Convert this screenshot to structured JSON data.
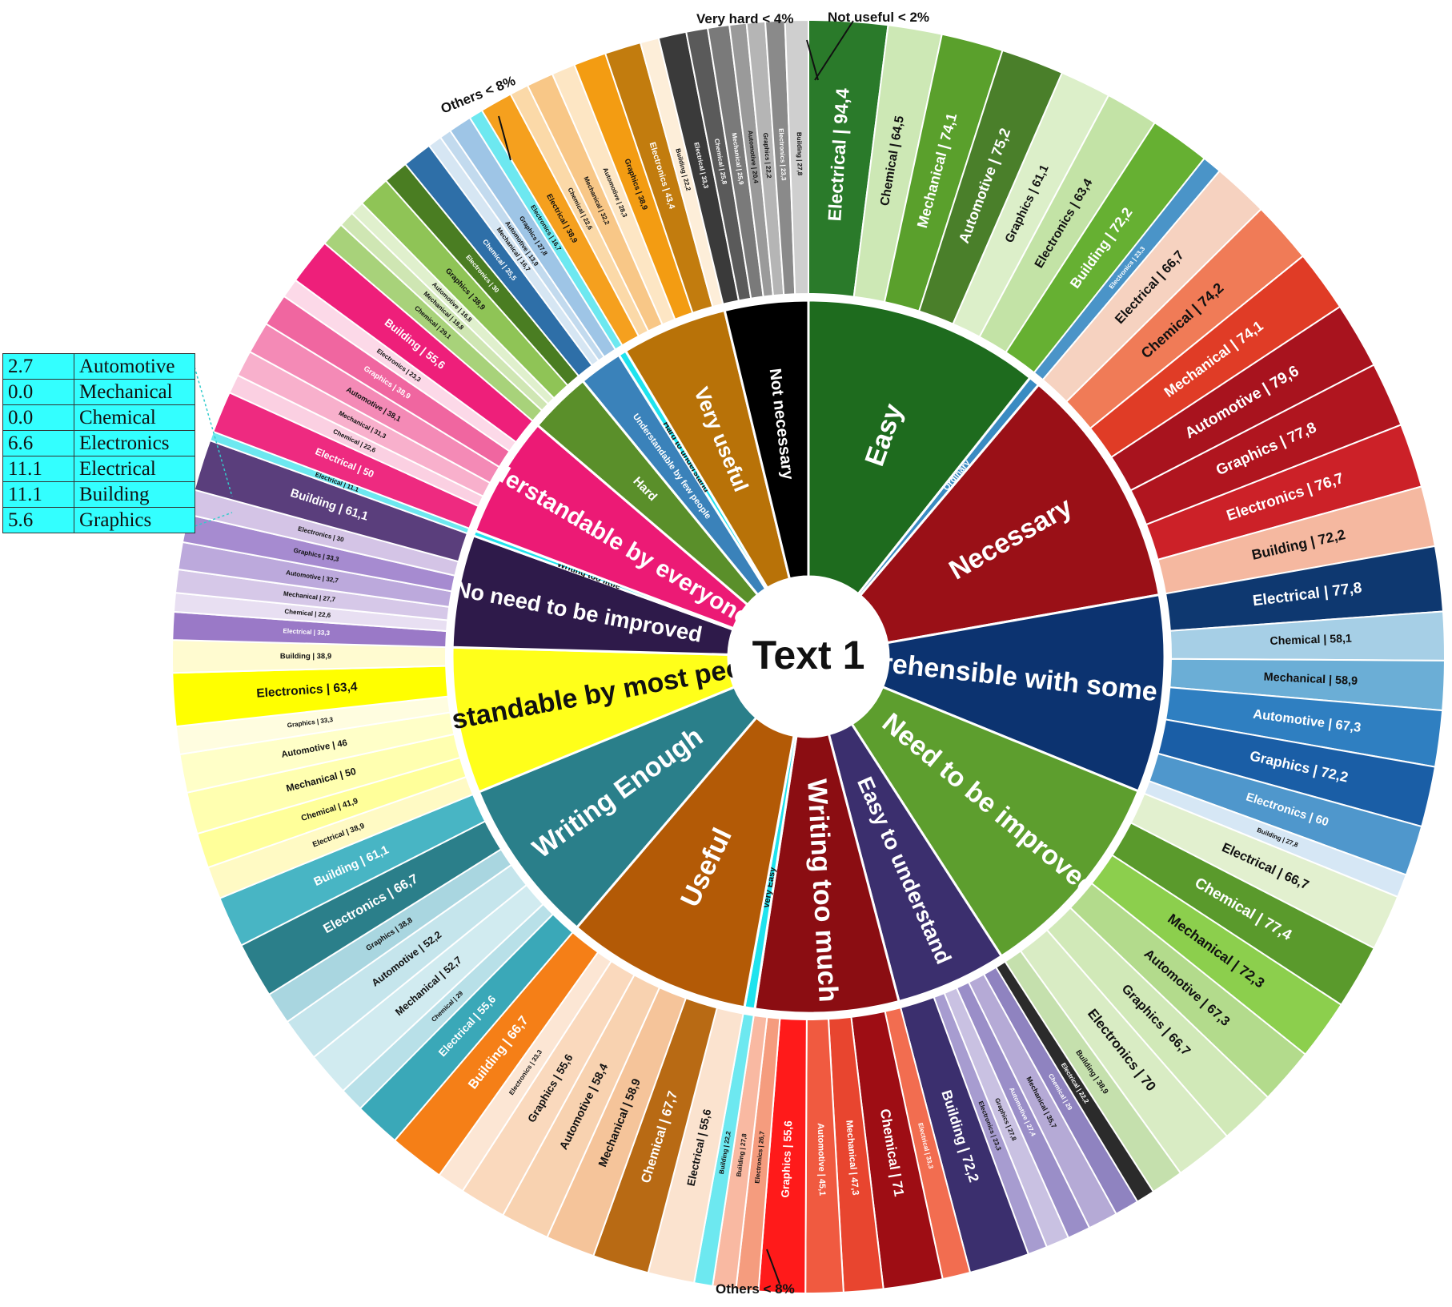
{
  "center_label": "Text 1",
  "callouts": {
    "very_hard": "Very hard < 4%",
    "not_useful": "Not useful < 2%",
    "others_top": "Others < 8%",
    "others_bottom": "Others < 8%"
  },
  "legend_table": [
    {
      "value": "2.7",
      "label": "Automotive"
    },
    {
      "value": "0.0",
      "label": "Mechanical"
    },
    {
      "value": "0.0",
      "label": "Chemical"
    },
    {
      "value": "6.6",
      "label": "Electronics"
    },
    {
      "value": "11.1",
      "label": "Electrical"
    },
    {
      "value": "11.1",
      "label": "Building"
    },
    {
      "value": "5.6",
      "label": "Graphics"
    }
  ],
  "chart_data": {
    "type": "sunburst",
    "title": "Text 1",
    "units": "percent of respondents per specialty",
    "categories": [
      {
        "label": "Easy",
        "color": "#1e6b1e",
        "items": [
          {
            "specialty": "Electrical",
            "value": "94,4",
            "color": "#2a7a2a"
          },
          {
            "specialty": "Chemical",
            "value": "64,5",
            "color": "#cde8b5"
          },
          {
            "specialty": "Mechanical",
            "value": "74,1",
            "color": "#5aa02c"
          },
          {
            "specialty": "Automotive",
            "value": "75,2",
            "color": "#4a7f2a"
          },
          {
            "specialty": "Graphics",
            "value": "61,1",
            "color": "#dcefc9"
          },
          {
            "specialty": "Electronics",
            "value": "63,4",
            "color": "#c3e3a6"
          },
          {
            "specialty": "Building",
            "value": "72,2",
            "color": "#66b032"
          }
        ]
      },
      {
        "label": "Ordinary",
        "color": "#3a8bc2",
        "items": [
          {
            "specialty": "Electronics",
            "value": "23,3",
            "color": "#4a94c8"
          }
        ]
      },
      {
        "label": "Necessary",
        "color": "#9a1017",
        "items": [
          {
            "specialty": "Electrical",
            "value": "66,7",
            "color": "#f6d2c0"
          },
          {
            "specialty": "Chemical",
            "value": "74,2",
            "color": "#f07b57"
          },
          {
            "specialty": "Mechanical",
            "value": "74,1",
            "color": "#e03c26"
          },
          {
            "specialty": "Automotive",
            "value": "79,6",
            "color": "#a8131e"
          },
          {
            "specialty": "Graphics",
            "value": "77,8",
            "color": "#b0151f"
          },
          {
            "specialty": "Electronics",
            "value": "76,7",
            "color": "#cc2128"
          },
          {
            "specialty": "Building",
            "value": "72,2",
            "color": "#f5b8a0"
          }
        ]
      },
      {
        "label": "Comprehensible with some difficulty",
        "color": "#0c3370",
        "items": [
          {
            "specialty": "Electrical",
            "value": "77,8",
            "color": "#0e3870"
          },
          {
            "specialty": "Chemical",
            "value": "58,1",
            "color": "#a6cfe6"
          },
          {
            "specialty": "Mechanical",
            "value": "58,9",
            "color": "#6baed6"
          },
          {
            "specialty": "Automotive",
            "value": "67,3",
            "color": "#2f7fc1"
          },
          {
            "specialty": "Graphics",
            "value": "72,2",
            "color": "#1a5ea6"
          },
          {
            "specialty": "Electronics",
            "value": "60",
            "color": "#4f97cc"
          },
          {
            "specialty": "Building",
            "value": "27,8",
            "color": "#d6e7f5"
          }
        ]
      },
      {
        "label": "Need to be improved",
        "color": "#5d9e2e",
        "items": [
          {
            "specialty": "Electrical",
            "value": "66,7",
            "color": "#e2f0cf"
          },
          {
            "specialty": "Chemical",
            "value": "77,4",
            "color": "#5a9a2c"
          },
          {
            "specialty": "Mechanical",
            "value": "72,3",
            "color": "#8ccf4d"
          },
          {
            "specialty": "Automotive",
            "value": "67,3",
            "color": "#b3db8c"
          },
          {
            "specialty": "Graphics",
            "value": "66,7",
            "color": "#d1e9b8"
          },
          {
            "specialty": "Electronics",
            "value": "70",
            "color": "#d9ecc4"
          },
          {
            "specialty": "Building",
            "value": "38,9",
            "color": "#c5e0ad"
          }
        ]
      },
      {
        "label": "Easy to understand",
        "color": "#3b2f6e",
        "items": [
          {
            "specialty": "Electrical",
            "value": "22,2",
            "color": "#2b2b2b"
          },
          {
            "specialty": "Chemical",
            "value": "29",
            "color": "#8f83c0"
          },
          {
            "specialty": "Mechanical",
            "value": "35,7",
            "color": "#b5aad6"
          },
          {
            "specialty": "Automotive",
            "value": "27,4",
            "color": "#9a8ec8"
          },
          {
            "specialty": "Graphics",
            "value": "27,8",
            "color": "#c9c1e2"
          },
          {
            "specialty": "Electronics",
            "value": "23,3",
            "color": "#a79cd0"
          },
          {
            "specialty": "Building",
            "value": "72,2",
            "color": "#3b2f6e"
          }
        ]
      },
      {
        "label": "Writing too much",
        "color": "#8b0d12",
        "items": [
          {
            "specialty": "Electrical",
            "value": "33,3",
            "color": "#f26d50"
          },
          {
            "specialty": "Chemical",
            "value": "71",
            "color": "#9e0d14"
          },
          {
            "specialty": "Mechanical",
            "value": "47,3",
            "color": "#e8452f"
          },
          {
            "specialty": "Automotive",
            "value": "45,1",
            "color": "#f05a40"
          },
          {
            "specialty": "Graphics",
            "value": "55,6",
            "color": "#ff1a1a"
          },
          {
            "specialty": "Electronics",
            "value": "26,7",
            "color": "#f59c7e"
          },
          {
            "specialty": "Building",
            "value": "27,8",
            "color": "#f9b9a2"
          }
        ]
      },
      {
        "label": "Very Easy",
        "color": "#1fe3ee",
        "items": [
          {
            "specialty": "Building",
            "value": "22,2",
            "color": "#6de8f0"
          }
        ]
      },
      {
        "label": "Useful",
        "color": "#b35a06",
        "items": [
          {
            "specialty": "Electrical",
            "value": "55,6",
            "color": "#fbe3cf"
          },
          {
            "specialty": "Chemical",
            "value": "67,7",
            "color": "#b86a14"
          },
          {
            "specialty": "Mechanical",
            "value": "58,9",
            "color": "#f5c49a"
          },
          {
            "specialty": "Automotive",
            "value": "58,4",
            "color": "#f8d2b0"
          },
          {
            "specialty": "Graphics",
            "value": "55,6",
            "color": "#fad9bd"
          },
          {
            "specialty": "Electronics",
            "value": "33,3",
            "color": "#fce6d4"
          },
          {
            "specialty": "Building",
            "value": "66,7",
            "color": "#f57f17"
          }
        ]
      },
      {
        "label": "Writing Enough",
        "color": "#2a7f8a",
        "items": [
          {
            "specialty": "Electrical",
            "value": "55,6",
            "color": "#3aa8b8"
          },
          {
            "specialty": "Chemical",
            "value": "29",
            "color": "#b8e0e8"
          },
          {
            "specialty": "Mechanical",
            "value": "52,7",
            "color": "#d1ebf0"
          },
          {
            "specialty": "Automotive",
            "value": "52,2",
            "color": "#c5e5ec"
          },
          {
            "specialty": "Graphics",
            "value": "38,8",
            "color": "#a9d6e0"
          },
          {
            "specialty": "Electronics",
            "value": "66,7",
            "color": "#2b7f8a"
          },
          {
            "specialty": "Building",
            "value": "61,1",
            "color": "#48b5c4"
          }
        ]
      },
      {
        "label": "Understandable by most people",
        "color": "#ffff1a",
        "items": [
          {
            "specialty": "Electrical",
            "value": "38,9",
            "color": "#fffac4"
          },
          {
            "specialty": "Chemical",
            "value": "41,9",
            "color": "#ffff9a"
          },
          {
            "specialty": "Mechanical",
            "value": "50",
            "color": "#ffffb0"
          },
          {
            "specialty": "Automotive",
            "value": "46",
            "color": "#ffffc8"
          },
          {
            "specialty": "Graphics",
            "value": "33,3",
            "color": "#fffde0"
          },
          {
            "specialty": "Electronics",
            "value": "63,4",
            "color": "#ffff00"
          },
          {
            "specialty": "Building",
            "value": "38,9",
            "color": "#fffbd0"
          }
        ]
      },
      {
        "label": "No need to be improved",
        "color": "#2e1a4a",
        "items": [
          {
            "specialty": "Electrical",
            "value": "33,3",
            "color": "#9a79c7"
          },
          {
            "specialty": "Chemical",
            "value": "22,6",
            "color": "#e8dff2"
          },
          {
            "specialty": "Mechanical",
            "value": "27,7",
            "color": "#d6c8e8"
          },
          {
            "specialty": "Automotive",
            "value": "32,7",
            "color": "#bca9dc"
          },
          {
            "specialty": "Graphics",
            "value": "33,3",
            "color": "#a68bd0"
          },
          {
            "specialty": "Electronics",
            "value": "30",
            "color": "#d4c4e6"
          },
          {
            "specialty": "Building",
            "value": "61,1",
            "color": "#5a3e7c"
          }
        ]
      },
      {
        "label": "Writing too little",
        "color": "#1fe3ee",
        "items": [
          {
            "specialty": "Electrical",
            "value": "11.1",
            "color": "#6de8f0"
          }
        ]
      },
      {
        "label": "Understandable by everyone",
        "color": "#ec1a75",
        "items": [
          {
            "specialty": "Electrical",
            "value": "50",
            "color": "#ee2a80"
          },
          {
            "specialty": "Chemical",
            "value": "22,6",
            "color": "#fbd0e2"
          },
          {
            "specialty": "Mechanical",
            "value": "31,3",
            "color": "#f8b0cc"
          },
          {
            "specialty": "Automotive",
            "value": "38,1",
            "color": "#f48ab6"
          },
          {
            "specialty": "Graphics",
            "value": "38,9",
            "color": "#f066a0"
          },
          {
            "specialty": "Electronics",
            "value": "23,3",
            "color": "#fcd9e8"
          },
          {
            "specialty": "Building",
            "value": "55,6",
            "color": "#ee1f7a"
          }
        ]
      },
      {
        "label": "Hard",
        "color": "#5a8f2a",
        "items": [
          {
            "specialty": "Chemical",
            "value": "29,1",
            "color": "#a8d27a"
          },
          {
            "specialty": "Mechanical",
            "value": "18,8",
            "color": "#cfe6b3"
          },
          {
            "specialty": "Automotive",
            "value": "16,8",
            "color": "#e0f0cd"
          },
          {
            "specialty": "Graphics",
            "value": "38,9",
            "color": "#8fc456"
          },
          {
            "specialty": "Electronics",
            "value": "30",
            "color": "#4a7d22"
          }
        ]
      },
      {
        "label": "Understandable by few people",
        "color": "#3a82ba",
        "items": [
          {
            "specialty": "Chemical",
            "value": "35,5",
            "color": "#2e6fa8"
          },
          {
            "specialty": "Mechanical",
            "value": "16,7",
            "color": "#d6e6f3"
          },
          {
            "specialty": "Automotive",
            "value": "13,9",
            "color": "#c2daee"
          },
          {
            "specialty": "Graphics",
            "value": "27,8",
            "color": "#9ec5e6"
          }
        ]
      },
      {
        "label": "Hard to understand",
        "color": "#1fe3ee",
        "items": [
          {
            "specialty": "Electronics",
            "value": "16,7",
            "color": "#6de8f0"
          }
        ]
      },
      {
        "label": "Very useful",
        "color": "#b87208",
        "items": [
          {
            "specialty": "Electrical",
            "value": "38,9",
            "color": "#f5a01e"
          },
          {
            "specialty": "Chemical",
            "value": "22,6",
            "color": "#fbd9a8"
          },
          {
            "specialty": "Mechanical",
            "value": "32,2",
            "color": "#f8c787"
          },
          {
            "specialty": "Automotive",
            "value": "28,3",
            "color": "#fde6c4"
          },
          {
            "specialty": "Graphics",
            "value": "38,9",
            "color": "#f39c12"
          },
          {
            "specialty": "Electronics",
            "value": "43,4",
            "color": "#c27c0e"
          },
          {
            "specialty": "Building",
            "value": "22,2",
            "color": "#fdeed9"
          }
        ]
      },
      {
        "label": "Not necessary",
        "color": "#000000",
        "items": [
          {
            "specialty": "Electrical",
            "value": "33,3",
            "color": "#3a3a3a"
          },
          {
            "specialty": "Chemical",
            "value": "25,8",
            "color": "#5a5a5a"
          },
          {
            "specialty": "Mechanical",
            "value": "25,9",
            "color": "#7a7a7a"
          },
          {
            "specialty": "Automotive",
            "value": "20,4",
            "color": "#9a9a9a"
          },
          {
            "specialty": "Graphics",
            "value": "22,2",
            "color": "#b5b5b5"
          },
          {
            "specialty": "Electronics",
            "value": "23,3",
            "color": "#8a8a8a"
          },
          {
            "specialty": "Building",
            "value": "27,8",
            "color": "#cfcfcf"
          }
        ]
      }
    ]
  }
}
